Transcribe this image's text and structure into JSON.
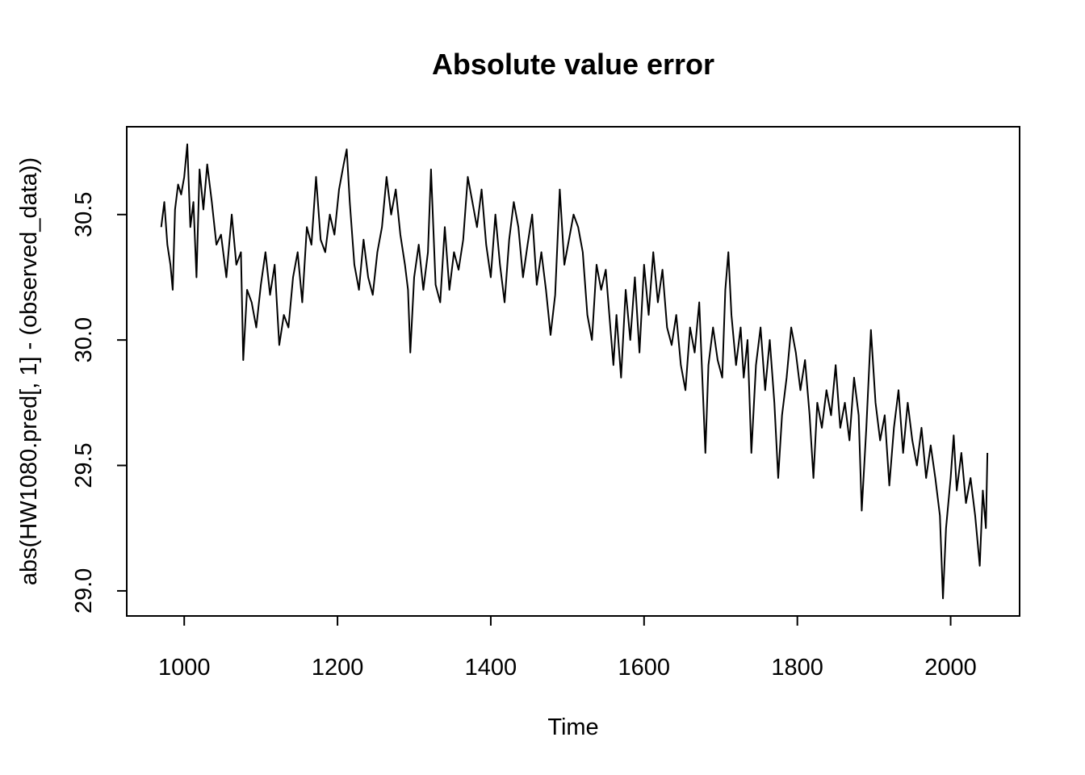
{
  "chart_data": {
    "type": "line",
    "title": "Absolute value error",
    "xlabel": "Time",
    "ylabel": "abs(HW1080.pred[, 1] - (observed_data))",
    "xlim": [
      925,
      2090
    ],
    "ylim": [
      28.9,
      30.85
    ],
    "x_ticks": [
      1000,
      1200,
      1400,
      1600,
      1800,
      2000
    ],
    "y_ticks": [
      29.0,
      29.5,
      30.0,
      30.5
    ],
    "x_tick_labels": [
      "1000",
      "1200",
      "1400",
      "1600",
      "1800",
      "2000"
    ],
    "y_tick_labels": [
      "29.0",
      "29.5",
      "30.0",
      "30.5"
    ],
    "grid": false,
    "legend": "none",
    "series": [
      {
        "color": "#000000",
        "points": [
          [
            970,
            30.45
          ],
          [
            974,
            30.55
          ],
          [
            978,
            30.38
          ],
          [
            982,
            30.3
          ],
          [
            985,
            30.2
          ],
          [
            988,
            30.52
          ],
          [
            992,
            30.62
          ],
          [
            996,
            30.58
          ],
          [
            1000,
            30.65
          ],
          [
            1004,
            30.78
          ],
          [
            1008,
            30.45
          ],
          [
            1012,
            30.55
          ],
          [
            1016,
            30.25
          ],
          [
            1020,
            30.68
          ],
          [
            1025,
            30.52
          ],
          [
            1030,
            30.7
          ],
          [
            1036,
            30.55
          ],
          [
            1042,
            30.38
          ],
          [
            1048,
            30.42
          ],
          [
            1055,
            30.25
          ],
          [
            1062,
            30.5
          ],
          [
            1068,
            30.3
          ],
          [
            1074,
            30.35
          ],
          [
            1077,
            29.92
          ],
          [
            1082,
            30.2
          ],
          [
            1088,
            30.15
          ],
          [
            1094,
            30.05
          ],
          [
            1100,
            30.22
          ],
          [
            1106,
            30.35
          ],
          [
            1112,
            30.18
          ],
          [
            1118,
            30.3
          ],
          [
            1124,
            29.98
          ],
          [
            1130,
            30.1
          ],
          [
            1136,
            30.05
          ],
          [
            1142,
            30.25
          ],
          [
            1148,
            30.35
          ],
          [
            1154,
            30.15
          ],
          [
            1160,
            30.45
          ],
          [
            1166,
            30.38
          ],
          [
            1172,
            30.65
          ],
          [
            1178,
            30.4
          ],
          [
            1184,
            30.35
          ],
          [
            1190,
            30.5
          ],
          [
            1196,
            30.42
          ],
          [
            1202,
            30.6
          ],
          [
            1208,
            30.7
          ],
          [
            1212,
            30.76
          ],
          [
            1216,
            30.55
          ],
          [
            1222,
            30.3
          ],
          [
            1228,
            30.2
          ],
          [
            1234,
            30.4
          ],
          [
            1240,
            30.25
          ],
          [
            1246,
            30.18
          ],
          [
            1252,
            30.35
          ],
          [
            1258,
            30.45
          ],
          [
            1264,
            30.65
          ],
          [
            1270,
            30.5
          ],
          [
            1276,
            30.6
          ],
          [
            1282,
            30.42
          ],
          [
            1288,
            30.3
          ],
          [
            1292,
            30.2
          ],
          [
            1295,
            29.95
          ],
          [
            1300,
            30.25
          ],
          [
            1306,
            30.38
          ],
          [
            1312,
            30.2
          ],
          [
            1318,
            30.35
          ],
          [
            1322,
            30.68
          ],
          [
            1328,
            30.22
          ],
          [
            1334,
            30.15
          ],
          [
            1340,
            30.45
          ],
          [
            1346,
            30.2
          ],
          [
            1352,
            30.35
          ],
          [
            1358,
            30.28
          ],
          [
            1364,
            30.4
          ],
          [
            1370,
            30.65
          ],
          [
            1376,
            30.55
          ],
          [
            1382,
            30.45
          ],
          [
            1388,
            30.6
          ],
          [
            1394,
            30.38
          ],
          [
            1400,
            30.25
          ],
          [
            1406,
            30.5
          ],
          [
            1412,
            30.3
          ],
          [
            1418,
            30.15
          ],
          [
            1424,
            30.4
          ],
          [
            1430,
            30.55
          ],
          [
            1436,
            30.45
          ],
          [
            1442,
            30.25
          ],
          [
            1448,
            30.38
          ],
          [
            1454,
            30.5
          ],
          [
            1460,
            30.22
          ],
          [
            1466,
            30.35
          ],
          [
            1472,
            30.2
          ],
          [
            1478,
            30.02
          ],
          [
            1484,
            30.18
          ],
          [
            1490,
            30.6
          ],
          [
            1496,
            30.3
          ],
          [
            1502,
            30.4
          ],
          [
            1508,
            30.5
          ],
          [
            1514,
            30.45
          ],
          [
            1520,
            30.35
          ],
          [
            1526,
            30.1
          ],
          [
            1532,
            30.0
          ],
          [
            1538,
            30.3
          ],
          [
            1544,
            30.2
          ],
          [
            1550,
            30.28
          ],
          [
            1556,
            30.05
          ],
          [
            1560,
            29.9
          ],
          [
            1564,
            30.1
          ],
          [
            1570,
            29.85
          ],
          [
            1576,
            30.2
          ],
          [
            1582,
            30.0
          ],
          [
            1588,
            30.25
          ],
          [
            1594,
            29.95
          ],
          [
            1600,
            30.3
          ],
          [
            1606,
            30.1
          ],
          [
            1612,
            30.35
          ],
          [
            1618,
            30.15
          ],
          [
            1624,
            30.28
          ],
          [
            1630,
            30.05
          ],
          [
            1636,
            29.98
          ],
          [
            1642,
            30.1
          ],
          [
            1648,
            29.9
          ],
          [
            1654,
            29.8
          ],
          [
            1660,
            30.05
          ],
          [
            1666,
            29.95
          ],
          [
            1672,
            30.15
          ],
          [
            1676,
            29.85
          ],
          [
            1680,
            29.55
          ],
          [
            1684,
            29.9
          ],
          [
            1690,
            30.05
          ],
          [
            1696,
            29.92
          ],
          [
            1702,
            29.85
          ],
          [
            1706,
            30.2
          ],
          [
            1710,
            30.35
          ],
          [
            1714,
            30.1
          ],
          [
            1720,
            29.9
          ],
          [
            1726,
            30.05
          ],
          [
            1730,
            29.85
          ],
          [
            1735,
            30.0
          ],
          [
            1740,
            29.55
          ],
          [
            1746,
            29.9
          ],
          [
            1752,
            30.05
          ],
          [
            1758,
            29.8
          ],
          [
            1764,
            30.0
          ],
          [
            1770,
            29.75
          ],
          [
            1775,
            29.45
          ],
          [
            1780,
            29.7
          ],
          [
            1786,
            29.85
          ],
          [
            1792,
            30.05
          ],
          [
            1798,
            29.95
          ],
          [
            1804,
            29.8
          ],
          [
            1810,
            29.92
          ],
          [
            1816,
            29.7
          ],
          [
            1821,
            29.45
          ],
          [
            1826,
            29.75
          ],
          [
            1832,
            29.65
          ],
          [
            1838,
            29.8
          ],
          [
            1844,
            29.7
          ],
          [
            1850,
            29.9
          ],
          [
            1856,
            29.65
          ],
          [
            1862,
            29.75
          ],
          [
            1868,
            29.6
          ],
          [
            1874,
            29.85
          ],
          [
            1880,
            29.7
          ],
          [
            1884,
            29.32
          ],
          [
            1890,
            29.65
          ],
          [
            1896,
            30.04
          ],
          [
            1902,
            29.75
          ],
          [
            1908,
            29.6
          ],
          [
            1914,
            29.7
          ],
          [
            1920,
            29.42
          ],
          [
            1926,
            29.65
          ],
          [
            1932,
            29.8
          ],
          [
            1938,
            29.55
          ],
          [
            1944,
            29.75
          ],
          [
            1950,
            29.6
          ],
          [
            1956,
            29.5
          ],
          [
            1962,
            29.65
          ],
          [
            1968,
            29.45
          ],
          [
            1974,
            29.58
          ],
          [
            1980,
            29.45
          ],
          [
            1986,
            29.3
          ],
          [
            1990,
            28.97
          ],
          [
            1994,
            29.25
          ],
          [
            2000,
            29.45
          ],
          [
            2004,
            29.62
          ],
          [
            2008,
            29.4
          ],
          [
            2014,
            29.55
          ],
          [
            2020,
            29.35
          ],
          [
            2026,
            29.45
          ],
          [
            2032,
            29.3
          ],
          [
            2038,
            29.1
          ],
          [
            2042,
            29.4
          ],
          [
            2046,
            29.25
          ],
          [
            2048,
            29.55
          ]
        ]
      }
    ]
  }
}
